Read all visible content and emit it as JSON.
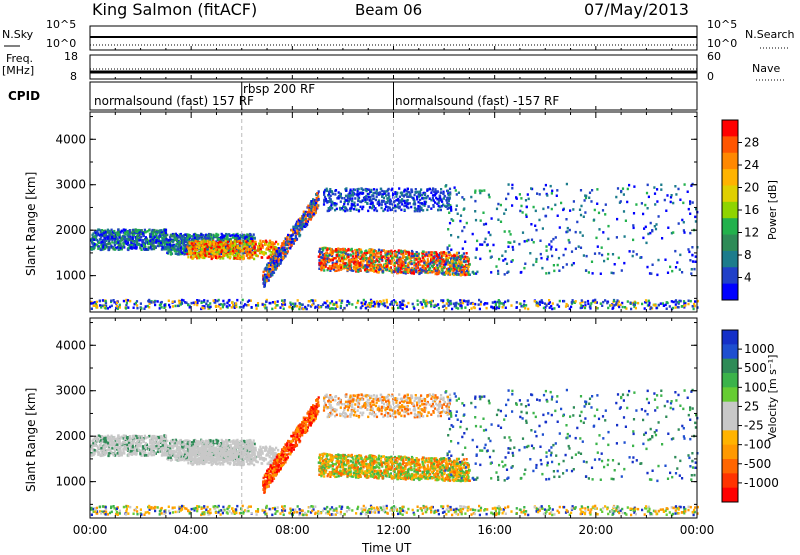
{
  "header": {
    "title": "King Salmon (fitACF)",
    "beam": "Beam 06",
    "date": "07/May/2013"
  },
  "noise_panel": {
    "left_label": "N.Sky",
    "right_label": "N.Search",
    "left_ticks": [
      "10^5",
      "10^0"
    ],
    "right_ticks": [
      "10^5",
      "10^0"
    ]
  },
  "freq_panel": {
    "left_label": "Freq.",
    "left_unit": "[MHz]",
    "right_label": "Nave",
    "left_ticks": [
      "18",
      "8"
    ],
    "right_ticks": [
      "60",
      "0"
    ]
  },
  "cpid": {
    "label": "CPID",
    "segments": [
      {
        "start": "00:00",
        "end": "06:00",
        "text": "normalsound (fast) 157 RF"
      },
      {
        "start": "06:00",
        "end": "12:00",
        "text": "rbsp 200 RF"
      },
      {
        "start": "12:00",
        "end": "24:00",
        "text": "normalsound (fast) -157 RF"
      }
    ]
  },
  "chart_data": [
    {
      "type": "heatmap",
      "name": "power",
      "ylabel": "Slant Range [km]",
      "yticks": [
        1000,
        2000,
        3000,
        4000
      ],
      "ylim": [
        200,
        4600
      ],
      "xlim": [
        0,
        24
      ],
      "colorbar": {
        "label": "Power [dB]",
        "ticks": [
          "28",
          "24",
          "20",
          "16",
          "12",
          "8",
          "4"
        ],
        "colors": [
          "#ff0000",
          "#ff5500",
          "#ff8800",
          "#ffb300",
          "#e0d000",
          "#8fd400",
          "#22b14c",
          "#2e8b57",
          "#1c7c8c",
          "#2040c8",
          "#0000ff"
        ]
      }
    },
    {
      "type": "heatmap",
      "name": "velocity",
      "ylabel": "Slant Range [km]",
      "yticks": [
        1000,
        2000,
        3000,
        4000
      ],
      "ylim": [
        200,
        4600
      ],
      "xlim": [
        0,
        24
      ],
      "colorbar": {
        "label": "Velocity [m s⁻¹]",
        "ticks": [
          "1000",
          "500",
          "100",
          "25",
          "-25",
          "-100",
          "-500",
          "-1000"
        ],
        "colors": [
          "#1530c8",
          "#1e4fd0",
          "#2e8b57",
          "#3bb34a",
          "#66cc33",
          "#c8c8c8",
          "#c8c8c8",
          "#ffb300",
          "#ff9900",
          "#ff6600",
          "#ff3300",
          "#ff0000"
        ]
      }
    }
  ],
  "xaxis": {
    "label": "Time UT",
    "ticks": [
      "00:00",
      "04:00",
      "08:00",
      "12:00",
      "16:00",
      "20:00",
      "00:00"
    ]
  }
}
